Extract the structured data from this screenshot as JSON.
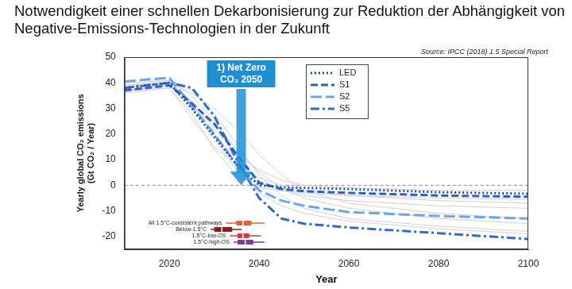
{
  "chart_data": {
    "type": "line",
    "title": "Notwendigkeit einer schnellen Dekarbonisierung zur Reduktion der Abhängigkeit von Negative-Emissions-Technologien in der Zukunft",
    "source": "Source: IPCC (2018) 1.5 Special Report",
    "x_label": "Year",
    "y_label": [
      "Yearly global CO₂ emissions",
      "(Gt CO₂ / Year)"
    ],
    "x": [
      2010,
      2020,
      2025,
      2030,
      2035,
      2040,
      2045,
      2050,
      2060,
      2080,
      2100
    ],
    "xlim": [
      2010,
      2100
    ],
    "xticks": [
      2020,
      2040,
      2060,
      2080,
      2100
    ],
    "ylim": [
      -25,
      50
    ],
    "yticks": [
      -20,
      -10,
      0,
      10,
      20,
      30,
      40,
      50
    ],
    "grid": false,
    "legend": "upper right",
    "reference_line": 0,
    "series": [
      {
        "name": "LED",
        "color": "#1f4fa8",
        "line_style": "dotted",
        "values": [
          38,
          40,
          30,
          19,
          8,
          0,
          -0.8,
          -1,
          -1.5,
          -2.7,
          -3.3
        ]
      },
      {
        "name": "S1",
        "color": "#2a5fc7",
        "line_style": "dashed",
        "values": [
          37,
          39,
          32,
          24,
          12,
          1,
          -1.5,
          -2.3,
          -3,
          -4,
          -4.5
        ]
      },
      {
        "name": "S2",
        "color": "#6aa6ea",
        "line_style": "longdash",
        "values": [
          40.5,
          42,
          31,
          20,
          8,
          -2,
          -6,
          -8,
          -10.5,
          -12,
          -13
        ]
      },
      {
        "name": "S5",
        "color": "#2f6ad0",
        "line_style": "dashdot",
        "values": [
          38,
          40,
          38,
          27,
          10,
          -5,
          -13,
          -15,
          -16.5,
          -18.7,
          -21
        ]
      }
    ],
    "background_pathways": {
      "color": "#cfcfcf",
      "values": [
        [
          38,
          40,
          32,
          20,
          10,
          2,
          -2,
          -4,
          -6,
          -8,
          -9
        ],
        [
          36,
          38,
          26,
          15,
          8,
          3,
          0,
          -2,
          -4,
          -6,
          -7
        ],
        [
          39,
          41,
          35,
          25,
          14,
          5,
          -1,
          -5,
          -9,
          -13,
          -15
        ],
        [
          37,
          39,
          30,
          18,
          6,
          -3,
          -8,
          -11,
          -14,
          -17,
          -19
        ],
        [
          38,
          40,
          36,
          30,
          22,
          12,
          4,
          -2,
          -7,
          -11,
          -13
        ],
        [
          37,
          38,
          28,
          14,
          4,
          -1,
          -2,
          -3,
          -4,
          -5,
          -5.5
        ],
        [
          39,
          40,
          33,
          22,
          12,
          6,
          2,
          0,
          -1,
          -2,
          -2
        ],
        [
          40,
          41,
          37,
          28,
          16,
          4,
          -4,
          -9,
          -13,
          -16,
          -18
        ]
      ]
    },
    "annotation": {
      "lines": [
        "1) Net Zero",
        "CO₂ 2050"
      ],
      "x": 2036,
      "y": 0,
      "color": "#1f8fd4"
    },
    "net_zero_ranges": [
      {
        "label": "All 1.5°C-consistent pathways",
        "color": "#d9673a",
        "min": 2032.6,
        "q1": 2034.9,
        "median": 2036.4,
        "q3": 2038.3,
        "max": 2041.2
      },
      {
        "label": "Below-1.5°C",
        "color": "#8b1c1c",
        "min": 2029.2,
        "q1": 2030.0,
        "median": 2031.7,
        "q3": 2034.0,
        "max": 2036.1
      },
      {
        "label": "1.5°C-low-OS",
        "color": "#c8413a",
        "min": 2033.5,
        "q1": 2035.2,
        "median": 2036.4,
        "q3": 2037.8,
        "max": 2040.4
      },
      {
        "label": "1.5°C-high-OS",
        "color": "#7a3b9a",
        "min": 2034.3,
        "q1": 2035.2,
        "median": 2036.9,
        "q3": 2038.7,
        "max": 2041.2
      }
    ]
  }
}
